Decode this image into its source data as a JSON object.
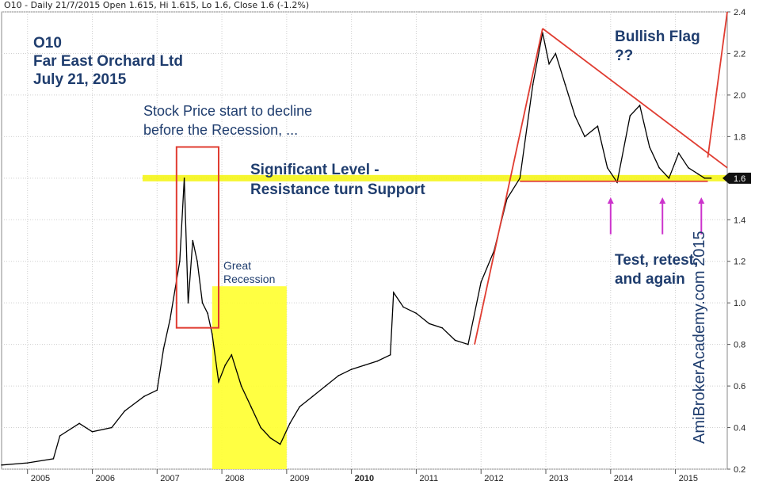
{
  "header": {
    "text": "O10 - Daily 21/7/2015 Open 1.615, Hi 1.615, Lo 1.6, Close 1.6 (-1.2%)"
  },
  "annotations": {
    "ticker": "O10",
    "company": "Far East Orchard Ltd",
    "date": "July 21, 2015",
    "decline_line1": "Stock Price start to decline",
    "decline_line2": "before the Recession, ...",
    "recession_line1": "Great",
    "recession_line2": "Recession",
    "level_line1": "Significant Level -",
    "level_line2": "Resistance turn Support",
    "flag_line1": "Bullish Flag",
    "flag_line2": "??",
    "test_line1": "Test, retest,",
    "test_line2": "and again",
    "watermark": "AmiBrokerAcademy.com 2015"
  },
  "colors": {
    "price": "#000000",
    "trend_lines": "#e03c31",
    "support_band": "#f5f50a",
    "recession_box": "#ffff2e",
    "arrows": "#cc33cc",
    "grid": "#cfcfcf",
    "annotation_text": "#1f3d6e"
  },
  "chart_data": {
    "type": "line",
    "title": "O10 - Daily 21/7/2015",
    "xlabel": "",
    "ylabel": "",
    "x_ticks": [
      "2005",
      "2006",
      "2007",
      "2008",
      "2009",
      "2010",
      "2011",
      "2012",
      "2013",
      "2014",
      "2015"
    ],
    "y_ticks": [
      "0.2",
      "0.4",
      "0.6",
      "0.8",
      "1.0",
      "1.2",
      "1.4",
      "1.6",
      "1.8",
      "2.0",
      "2.2",
      "2.4"
    ],
    "ylim": [
      0.2,
      2.4
    ],
    "xlim": [
      2004.6,
      2015.8
    ],
    "grid": true,
    "last_price_label": "1.6",
    "support_level": 1.6,
    "recession_period": [
      2007.85,
      2009.0
    ],
    "series": [
      {
        "values_x": [
          2004.6,
          2005.0,
          2005.4,
          2005.5,
          2005.8,
          2006.0,
          2006.3,
          2006.5,
          2006.8,
          2007.0,
          2007.1,
          2007.2,
          2007.35,
          2007.42,
          2007.48,
          2007.55,
          2007.62,
          2007.7,
          2007.78,
          2007.85,
          2007.95,
          2008.05,
          2008.15,
          2008.3,
          2008.45,
          2008.6,
          2008.75,
          2008.9,
          2009.05,
          2009.2,
          2009.4,
          2009.6,
          2009.8,
          2010.0,
          2010.2,
          2010.4,
          2010.6,
          2010.65,
          2010.8,
          2011.0,
          2011.2,
          2011.4,
          2011.6,
          2011.8,
          2012.0,
          2012.2,
          2012.4,
          2012.6,
          2012.8,
          2012.95,
          2013.05,
          2013.15,
          2013.3,
          2013.45,
          2013.6,
          2013.8,
          2013.95,
          2014.1,
          2014.3,
          2014.45,
          2014.6,
          2014.75,
          2014.9,
          2015.05,
          2015.2,
          2015.35,
          2015.45,
          2015.55
        ],
        "values_y": [
          0.22,
          0.23,
          0.25,
          0.36,
          0.42,
          0.38,
          0.4,
          0.48,
          0.55,
          0.58,
          0.78,
          0.92,
          1.2,
          1.6,
          1.0,
          1.3,
          1.2,
          1.0,
          0.95,
          0.85,
          0.62,
          0.7,
          0.75,
          0.6,
          0.5,
          0.4,
          0.35,
          0.32,
          0.42,
          0.5,
          0.55,
          0.6,
          0.65,
          0.68,
          0.7,
          0.72,
          0.75,
          1.05,
          0.98,
          0.95,
          0.9,
          0.88,
          0.82,
          0.8,
          1.1,
          1.25,
          1.5,
          1.6,
          2.05,
          2.3,
          2.15,
          2.2,
          2.05,
          1.9,
          1.8,
          1.85,
          1.65,
          1.58,
          1.9,
          1.95,
          1.75,
          1.65,
          1.6,
          1.72,
          1.65,
          1.62,
          1.6,
          1.6
        ]
      }
    ],
    "trend_lines": [
      {
        "from": [
          2011.9,
          0.8
        ],
        "to": [
          2012.95,
          2.32
        ]
      },
      {
        "from": [
          2012.95,
          2.32
        ],
        "to": [
          2015.8,
          1.65
        ]
      },
      {
        "from": [
          2012.6,
          1.585
        ],
        "to": [
          2015.5,
          1.585
        ]
      },
      {
        "from": [
          2015.5,
          1.7
        ],
        "to": [
          2015.8,
          2.4
        ]
      }
    ],
    "highlight_box": {
      "x": [
        2007.3,
        2007.95
      ],
      "y": [
        0.88,
        1.75
      ]
    },
    "arrows_x": [
      2014.0,
      2014.8,
      2015.4
    ]
  }
}
